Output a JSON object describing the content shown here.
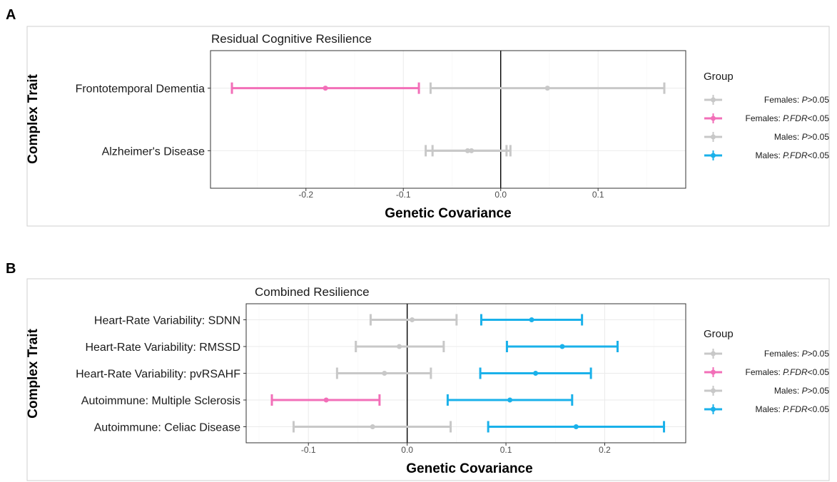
{
  "chart_data": [
    {
      "panel_letter": "A",
      "type": "errorbar",
      "title": "Residual Cognitive Resilience",
      "xlabel": "Genetic Covariance",
      "ylabel": "Complex Trait",
      "xlim": [
        -0.298,
        0.19
      ],
      "xticks": [
        "-0.2",
        "-0.1",
        "0.0",
        "0.1"
      ],
      "xtick_values": [
        -0.2,
        -0.1,
        0.0,
        0.1
      ],
      "reference_line": 0,
      "grid": true,
      "legend_position": "right",
      "legend": {
        "title": "Group",
        "entries": [
          {
            "label": "Females: P>0.05",
            "color": "#c8c8c8"
          },
          {
            "label": "Females: P.FDR<0.05",
            "color": "#f26fb8"
          },
          {
            "label": "Males: P>0.05",
            "color": "#c8c8c8"
          },
          {
            "label": "Males: P.FDR<0.05",
            "color": "#1ab1ea"
          }
        ]
      },
      "categories": [
        "Frontotemporal Dementia",
        "Alzheimer's Disease"
      ],
      "series": [
        {
          "name": "Females",
          "points": [
            {
              "category": "Frontotemporal Dementia",
              "estimate": -0.18,
              "lower": -0.276,
              "upper": -0.084,
              "group": "Females: P.FDR<0.05",
              "color": "#f26fb8"
            },
            {
              "category": "Alzheimer's Disease",
              "estimate": -0.034,
              "lower": -0.077,
              "upper": 0.006,
              "group": "Females: P>0.05",
              "color": "#c8c8c8"
            }
          ]
        },
        {
          "name": "Males",
          "points": [
            {
              "category": "Frontotemporal Dementia",
              "estimate": 0.048,
              "lower": -0.072,
              "upper": 0.168,
              "group": "Males: P>0.05",
              "color": "#c8c8c8"
            },
            {
              "category": "Alzheimer's Disease",
              "estimate": -0.03,
              "lower": -0.07,
              "upper": 0.01,
              "group": "Males: P>0.05",
              "color": "#c8c8c8"
            }
          ]
        }
      ]
    },
    {
      "panel_letter": "B",
      "type": "errorbar",
      "title": "Combined Resilience",
      "xlabel": "Genetic Covariance",
      "ylabel": "Complex Trait",
      "xlim": [
        -0.163,
        0.282
      ],
      "xticks": [
        "-0.1",
        "0.0",
        "0.1",
        "0.2"
      ],
      "xtick_values": [
        -0.1,
        0.0,
        0.1,
        0.2
      ],
      "reference_line": 0,
      "grid": true,
      "legend_position": "right",
      "legend": {
        "title": "Group",
        "entries": [
          {
            "label": "Females: P>0.05",
            "color": "#c8c8c8"
          },
          {
            "label": "Females: P.FDR<0.05",
            "color": "#f26fb8"
          },
          {
            "label": "Males: P>0.05",
            "color": "#c8c8c8"
          },
          {
            "label": "Males: P.FDR<0.05",
            "color": "#1ab1ea"
          }
        ]
      },
      "categories": [
        "Heart-Rate Variability: SDNN",
        "Heart-Rate Variability: RMSSD",
        "Heart-Rate Variability: pvRSAHF",
        "Autoimmune: Multiple Sclerosis",
        "Autoimmune: Celiac Disease"
      ],
      "series": [
        {
          "name": "Females",
          "points": [
            {
              "category": "Heart-Rate Variability: SDNN",
              "estimate": 0.005,
              "lower": -0.037,
              "upper": 0.05,
              "group": "Females: P>0.05",
              "color": "#c8c8c8"
            },
            {
              "category": "Heart-Rate Variability: RMSSD",
              "estimate": -0.008,
              "lower": -0.052,
              "upper": 0.037,
              "group": "Females: P>0.05",
              "color": "#c8c8c8"
            },
            {
              "category": "Heart-Rate Variability: pvRSAHF",
              "estimate": -0.023,
              "lower": -0.071,
              "upper": 0.024,
              "group": "Females: P>0.05",
              "color": "#c8c8c8"
            },
            {
              "category": "Autoimmune: Multiple Sclerosis",
              "estimate": -0.082,
              "lower": -0.137,
              "upper": -0.028,
              "group": "Females: P.FDR<0.05",
              "color": "#f26fb8"
            },
            {
              "category": "Autoimmune: Celiac Disease",
              "estimate": -0.035,
              "lower": -0.115,
              "upper": 0.044,
              "group": "Females: P>0.05",
              "color": "#c8c8c8"
            }
          ]
        },
        {
          "name": "Males",
          "points": [
            {
              "category": "Heart-Rate Variability: SDNN",
              "estimate": 0.126,
              "lower": 0.075,
              "upper": 0.177,
              "group": "Males: P.FDR<0.05",
              "color": "#1ab1ea"
            },
            {
              "category": "Heart-Rate Variability: RMSSD",
              "estimate": 0.157,
              "lower": 0.101,
              "upper": 0.213,
              "group": "Males: P.FDR<0.05",
              "color": "#1ab1ea"
            },
            {
              "category": "Heart-Rate Variability: pvRSAHF",
              "estimate": 0.13,
              "lower": 0.074,
              "upper": 0.186,
              "group": "Males: P.FDR<0.05",
              "color": "#1ab1ea"
            },
            {
              "category": "Autoimmune: Multiple Sclerosis",
              "estimate": 0.104,
              "lower": 0.041,
              "upper": 0.167,
              "group": "Males: P.FDR<0.05",
              "color": "#1ab1ea"
            },
            {
              "category": "Autoimmune: Celiac Disease",
              "estimate": 0.171,
              "lower": 0.082,
              "upper": 0.26,
              "group": "Males: P.FDR<0.05",
              "color": "#1ab1ea"
            }
          ]
        }
      ]
    }
  ]
}
